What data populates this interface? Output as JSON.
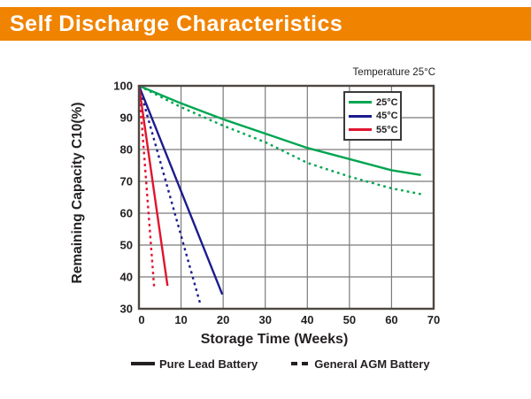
{
  "header": {
    "title": "Self Discharge Characteristics"
  },
  "colors": {
    "banner_orange": "#F08300",
    "banner_text": "#FFFFFF",
    "grid": "#7B7B7B",
    "frame": "#4E4742",
    "text": "#231F20",
    "green_25c": "#00A551",
    "blue_45c": "#1C1C8F",
    "red_55c": "#E1142D"
  },
  "chart_data": {
    "type": "line",
    "note": "Temperature 25°C",
    "xlabel": "Storage Time (Weeks)",
    "ylabel": "Remaining Capacity C10(%)",
    "xlim": [
      0,
      70
    ],
    "ylim": [
      30,
      100
    ],
    "x_tick_step": 10,
    "y_tick_step": 10,
    "grid": true,
    "legend": {
      "position": "top-right-inside",
      "entries": [
        {
          "label": "25°C",
          "color": "#00A551"
        },
        {
          "label": "45°C",
          "color": "#1C1C8F"
        },
        {
          "label": "55°C",
          "color": "#E1142D"
        }
      ]
    },
    "series": [
      {
        "name": "Pure Lead Battery 25°C",
        "temperature": "25°C",
        "battery": "Pure Lead Battery",
        "color": "#00A551",
        "line_style": "solid",
        "points": [
          [
            0,
            100
          ],
          [
            10,
            94.5
          ],
          [
            20,
            89.5
          ],
          [
            30,
            85
          ],
          [
            40,
            80.5
          ],
          [
            50,
            77
          ],
          [
            60,
            73.5
          ],
          [
            67,
            72
          ]
        ]
      },
      {
        "name": "General AGM Battery 25°C",
        "temperature": "25°C",
        "battery": "General AGM Battery",
        "color": "#00A551",
        "line_style": "dashed",
        "points": [
          [
            0,
            100
          ],
          [
            10,
            93.3
          ],
          [
            20,
            87.5
          ],
          [
            30,
            82.3
          ],
          [
            40,
            75.8
          ],
          [
            50,
            71.5
          ],
          [
            60,
            67.8
          ],
          [
            67,
            66
          ]
        ]
      },
      {
        "name": "Pure Lead Battery 45°C",
        "temperature": "45°C",
        "battery": "Pure Lead Battery",
        "color": "#1C1C8F",
        "line_style": "solid",
        "points": [
          [
            0,
            100
          ],
          [
            19.8,
            34.5
          ]
        ]
      },
      {
        "name": "General AGM Battery 45°C",
        "temperature": "45°C",
        "battery": "General AGM Battery",
        "color": "#1C1C8F",
        "line_style": "dashed",
        "points": [
          [
            0,
            100
          ],
          [
            14.5,
            31.8
          ]
        ]
      },
      {
        "name": "Pure Lead Battery 55°C",
        "temperature": "55°C",
        "battery": "Pure Lead Battery",
        "color": "#E1142D",
        "line_style": "solid",
        "points": [
          [
            0,
            100
          ],
          [
            6.8,
            37.2
          ]
        ]
      },
      {
        "name": "General AGM Battery 55°C",
        "temperature": "55°C",
        "battery": "General AGM Battery",
        "color": "#E1142D",
        "line_style": "dashed",
        "points": [
          [
            0,
            100
          ],
          [
            3.6,
            37
          ]
        ]
      }
    ],
    "bottom_legend": [
      {
        "label": "Pure Lead Battery",
        "line_style": "solid"
      },
      {
        "label": "General AGM Battery",
        "line_style": "dashed"
      }
    ]
  }
}
